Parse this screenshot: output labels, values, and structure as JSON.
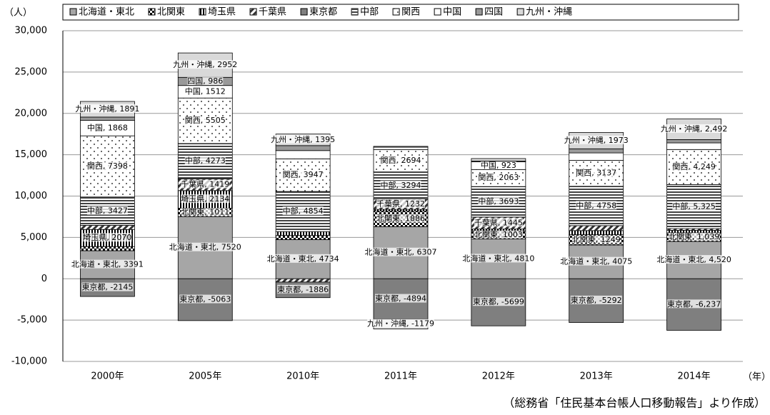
{
  "chart_data": {
    "type": "stacked-bar",
    "y_label": "（人）",
    "x_label": "（年）",
    "note": "（総務省「住民基本台帳人口移動報告」より作成）",
    "categories": [
      "2000年",
      "2005年",
      "2010年",
      "2011年",
      "2012年",
      "2013年",
      "2014年"
    ],
    "ylim": [
      -10000,
      30000
    ],
    "yticks": [
      {
        "value": -10000,
        "label": "-10,000"
      },
      {
        "value": -5000,
        "label": "-5,000"
      },
      0,
      {
        "value": 5000,
        "label": "5,000"
      },
      {
        "value": 10000,
        "label": "10,000"
      },
      {
        "value": 15000,
        "label": "15,000"
      },
      {
        "value": 20000,
        "label": "20,000"
      },
      {
        "value": 25000,
        "label": "25,000"
      },
      {
        "value": 30000,
        "label": "30,000"
      }
    ],
    "grid": true,
    "series": [
      {
        "name": "北海道・東北",
        "color": "#a6a6a6",
        "pattern": "none",
        "values": [
          3391,
          7520,
          4734,
          6307,
          4810,
          4075,
          4520
        ],
        "value_labels": [
          "北海道・東北, 3391",
          "北海道・東北, 7520",
          "北海道・東北, 4734",
          "北海道・東北, 6307",
          "北海道・東北, 4810",
          "北海道・東北, 4075",
          "北海道・東北, 4,520"
        ]
      },
      {
        "name": "北関東",
        "color": "#ffffff",
        "pattern": "checks",
        "values": [
          500,
          1011,
          500,
          1886,
          1003,
          1249,
          1039
        ],
        "value_labels": [
          null,
          "北関東, 1011",
          null,
          "北関東, 1886",
          "北関東, 1003",
          "北関東, 1249",
          "北関東, 1,039"
        ]
      },
      {
        "name": "埼玉県",
        "color": "#ffffff",
        "pattern": "vlines",
        "values": [
          2070,
          2134,
          470,
          200,
          200,
          500,
          300
        ],
        "value_labels": [
          "埼玉県,  2070",
          "埼玉県, 2134",
          null,
          null,
          null,
          null,
          null
        ]
      },
      {
        "name": "千葉県",
        "color": "#ffffff",
        "pattern": "diag",
        "values": [
          500,
          1419,
          -400,
          1232,
          1445,
          600,
          200
        ],
        "value_labels": [
          null,
          "千葉県, 1419",
          null,
          "千葉県, 1232",
          "千葉県, 1445",
          null,
          null
        ]
      },
      {
        "name": "東京都",
        "color": "#7f7f7f",
        "pattern": "none",
        "values": [
          -2145,
          -5063,
          -1886,
          -4894,
          -5699,
          -5292,
          -6237
        ],
        "value_labels": [
          "東京都, -2145",
          "東京都, -5063",
          "東京都, -1886",
          "東京都, -4894",
          "東京都, -5699",
          "東京都, -5292",
          "東京都, -6,237"
        ]
      },
      {
        "name": "中部",
        "color": "#ffffff",
        "pattern": "hlines",
        "values": [
          3427,
          4273,
          4854,
          3294,
          3693,
          4758,
          5325
        ],
        "value_labels": [
          "中部, 3427",
          "中部, 4273",
          "中部, 4854",
          "中部, 3294",
          "中部, 3693",
          "中部, 4758",
          "中部, 5,325"
        ]
      },
      {
        "name": "関西",
        "color": "#ffffff",
        "pattern": "dots",
        "values": [
          7398,
          5505,
          3947,
          2694,
          2063,
          3137,
          4249
        ],
        "value_labels": [
          "関西, 7398",
          "関西, 5505",
          "関西, 3947",
          "関西, 2694",
          "関西, 2063",
          "関西, 3137",
          "関西, 4,249"
        ]
      },
      {
        "name": "中国",
        "color": "#ffffff",
        "pattern": "none",
        "values": [
          1868,
          1512,
          1000,
          300,
          923,
          900,
          800
        ],
        "value_labels": [
          "中国, 1868",
          "中国, 1512",
          null,
          null,
          "中国, 923",
          null,
          null
        ]
      },
      {
        "name": "四国",
        "color": "#999999",
        "pattern": "none",
        "values": [
          400,
          986,
          600,
          100,
          100,
          500,
          400
        ],
        "value_labels": [
          null,
          "四国, 986",
          null,
          null,
          null,
          null,
          null
        ]
      },
      {
        "name": "九州・沖縄",
        "color": "#d9d9d9",
        "pattern": "none",
        "values": [
          1891,
          2952,
          1395,
          -1179,
          300,
          1973,
          2492
        ],
        "value_labels": [
          "九州・沖縄, 1891",
          "九州・沖縄, 2952",
          "九州・沖縄, 1395",
          "九州・沖縄, -1179",
          null,
          "九州・沖縄, 1973",
          "九州・沖縄, 2,492"
        ]
      }
    ]
  }
}
